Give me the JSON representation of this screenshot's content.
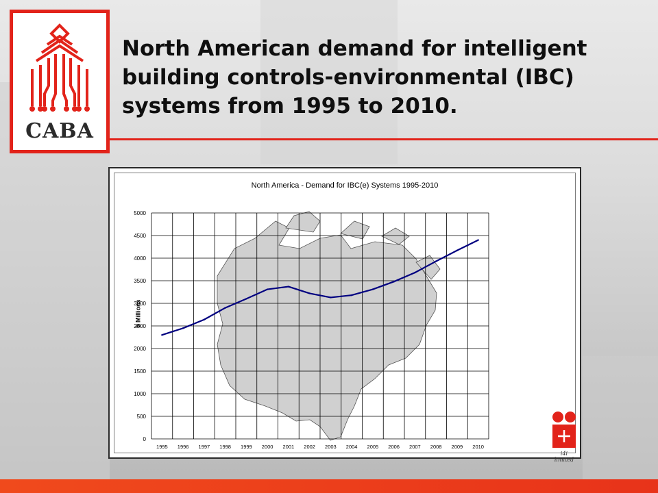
{
  "slide": {
    "title": "North American demand for intelligent building controls-environmental (IBC) systems from 1995 to 2010.",
    "logo_text": "CABA",
    "corner_logo_label": "i4i limited"
  },
  "colors": {
    "accent": "#e2231a",
    "line": "#000080",
    "bottom_bar": "#ee3e1a"
  },
  "chart_data": {
    "type": "line",
    "title": "North America - Demand for IBC(e) Systems 1995-2010",
    "xlabel": "",
    "ylabel": "$ Millions",
    "x": [
      1995,
      1996,
      1997,
      1998,
      1999,
      2000,
      2001,
      2002,
      2003,
      2004,
      2005,
      2006,
      2007,
      2008,
      2009,
      2010
    ],
    "y": [
      2300,
      2450,
      2640,
      2900,
      3100,
      3310,
      3370,
      3220,
      3130,
      3180,
      3310,
      3480,
      3680,
      3930,
      4170,
      4400
    ],
    "ylim": [
      0,
      5000
    ],
    "yticks": [
      0,
      500,
      1000,
      1500,
      2000,
      2500,
      3000,
      3500,
      4000,
      4500,
      5000
    ],
    "grid": true,
    "legend": "none",
    "background_image": "north-america-map"
  }
}
